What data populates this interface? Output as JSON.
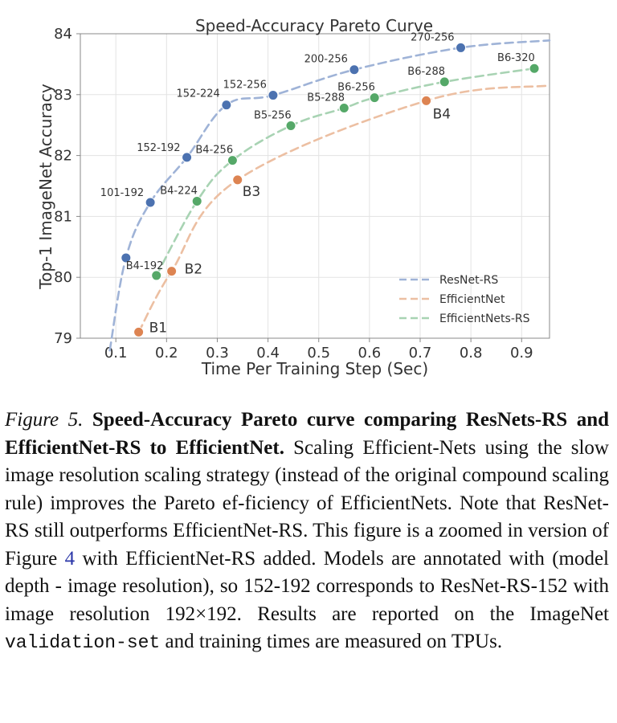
{
  "chart_data": {
    "type": "line",
    "title": "Speed-Accuracy Pareto Curve",
    "xlabel": "Time Per Training Step (Sec)",
    "ylabel": "Top-1 ImageNet Accuracy",
    "xlim": [
      0.03,
      0.955
    ],
    "ylim": [
      79,
      84
    ],
    "xticks": [
      "0.1",
      "0.2",
      "0.3",
      "0.4",
      "0.5",
      "0.6",
      "0.7",
      "0.8",
      "0.9"
    ],
    "xtick_values": [
      0.1,
      0.2,
      0.3,
      0.4,
      0.5,
      0.6,
      0.7,
      0.8,
      0.9
    ],
    "yticks": [
      "79",
      "80",
      "81",
      "82",
      "83",
      "84"
    ],
    "ytick_values": [
      79,
      80,
      81,
      82,
      83,
      84
    ],
    "grid": true,
    "legend_position": "bottom-right",
    "series": [
      {
        "name": "ResNet-RS",
        "color": "#4c72b0",
        "line_color": "#9fb3d7",
        "points": [
          {
            "x": 0.12,
            "y": 80.32,
            "label": ""
          },
          {
            "x": 0.168,
            "y": 81.23,
            "label": "101-192"
          },
          {
            "x": 0.24,
            "y": 81.97,
            "label": "152-192"
          },
          {
            "x": 0.318,
            "y": 82.83,
            "label": "152-224"
          },
          {
            "x": 0.41,
            "y": 82.99,
            "label": "152-256"
          },
          {
            "x": 0.57,
            "y": 83.41,
            "label": "200-256"
          },
          {
            "x": 0.78,
            "y": 83.77,
            "label": "270-256"
          }
        ],
        "curve": [
          [
            0.088,
            78.8
          ],
          [
            0.12,
            80.32
          ],
          [
            0.168,
            81.23
          ],
          [
            0.24,
            81.97
          ],
          [
            0.318,
            82.83
          ],
          [
            0.41,
            82.99
          ],
          [
            0.57,
            83.41
          ],
          [
            0.78,
            83.77
          ],
          [
            0.955,
            83.89
          ]
        ]
      },
      {
        "name": "EfficientNet",
        "color": "#dd8452",
        "line_color": "#ecbfa2",
        "points": [
          {
            "x": 0.145,
            "y": 79.1,
            "label": "B1"
          },
          {
            "x": 0.21,
            "y": 80.1,
            "label": "B2"
          },
          {
            "x": 0.34,
            "y": 81.6,
            "label": "B3"
          },
          {
            "x": 0.712,
            "y": 82.9,
            "label": "B4"
          }
        ],
        "curve": [
          [
            0.145,
            79.1
          ],
          [
            0.21,
            80.1
          ],
          [
            0.34,
            81.6
          ],
          [
            0.712,
            82.9
          ],
          [
            0.955,
            83.15
          ]
        ]
      },
      {
        "name": "EfficientNets-RS",
        "color": "#55a868",
        "line_color": "#a8d3b3",
        "points": [
          {
            "x": 0.18,
            "y": 80.03,
            "label": "B4-192"
          },
          {
            "x": 0.26,
            "y": 81.25,
            "label": "B4-224"
          },
          {
            "x": 0.33,
            "y": 81.92,
            "label": "B4-256"
          },
          {
            "x": 0.445,
            "y": 82.49,
            "label": "B5-256"
          },
          {
            "x": 0.55,
            "y": 82.78,
            "label": "B5-288"
          },
          {
            "x": 0.61,
            "y": 82.95,
            "label": "B6-256"
          },
          {
            "x": 0.748,
            "y": 83.21,
            "label": "B6-288"
          },
          {
            "x": 0.925,
            "y": 83.43,
            "label": "B6-320"
          }
        ],
        "curve": [
          [
            0.18,
            80.03
          ],
          [
            0.26,
            81.25
          ],
          [
            0.33,
            81.92
          ],
          [
            0.445,
            82.49
          ],
          [
            0.55,
            82.78
          ],
          [
            0.61,
            82.95
          ],
          [
            0.748,
            83.21
          ],
          [
            0.925,
            83.43
          ]
        ]
      }
    ]
  },
  "caption": {
    "fig_label": "Figure 5.",
    "bold_title": "Speed-Accuracy Pareto curve comparing ResNets-RS and EfficientNet-RS to EfficientNet.",
    "text1": "Scaling Efficient-Nets using the slow image resolution scaling strategy (instead of the original compound scaling rule) improves the Pareto ef-ficiency of EfficientNets. Note that ResNet-RS still outperforms EfficientNet-RS. This figure is a zoomed in version of Figure",
    "ref": "4",
    "text2": "with EfficientNet-RS added. Models are annotated with (model depth - image resolution), so 152-192 corresponds to ResNet-RS-152 with image resolution 192×192. Results are reported on the ImageNet",
    "mono": "validation-set",
    "text3": "and training times are measured on TPUs."
  }
}
